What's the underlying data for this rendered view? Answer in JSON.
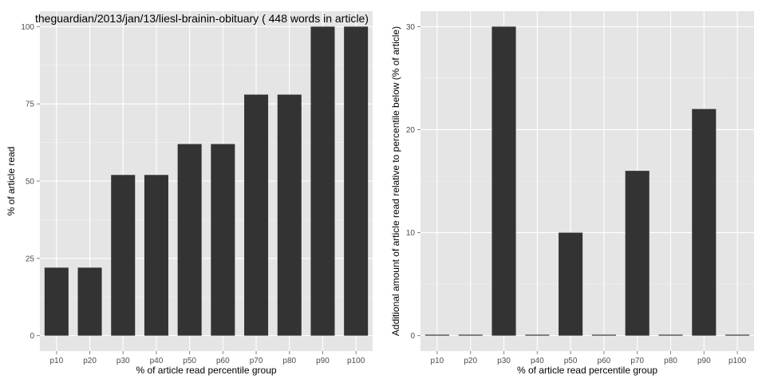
{
  "chart_data": [
    {
      "type": "bar",
      "title": "theguardian/2013/jan/13/liesl-brainin-obituary ( 448 words in article)",
      "xlabel": "% of article read percentile group",
      "ylabel": "% of article read",
      "categories": [
        "p10",
        "p20",
        "p30",
        "p40",
        "p50",
        "p60",
        "p70",
        "p80",
        "p90",
        "p100"
      ],
      "values": [
        22,
        22,
        52,
        52,
        62,
        62,
        78,
        78,
        100,
        100
      ],
      "yticks": [
        0,
        25,
        50,
        75,
        100
      ],
      "ylim": [
        -5,
        105
      ],
      "grid": true,
      "legend": "none"
    },
    {
      "type": "bar",
      "title": "",
      "xlabel": "% of article read percentile group",
      "ylabel": "Additional amount of article read relative to percentile below (% of article)",
      "categories": [
        "p10",
        "p20",
        "p30",
        "p40",
        "p50",
        "p60",
        "p70",
        "p80",
        "p90",
        "p100"
      ],
      "values": [
        0,
        0,
        30,
        0,
        10,
        0,
        16,
        0,
        22,
        0
      ],
      "yticks": [
        0,
        10,
        20,
        30
      ],
      "ylim": [
        -1.5,
        31.5
      ],
      "grid": true,
      "legend": "none"
    }
  ]
}
